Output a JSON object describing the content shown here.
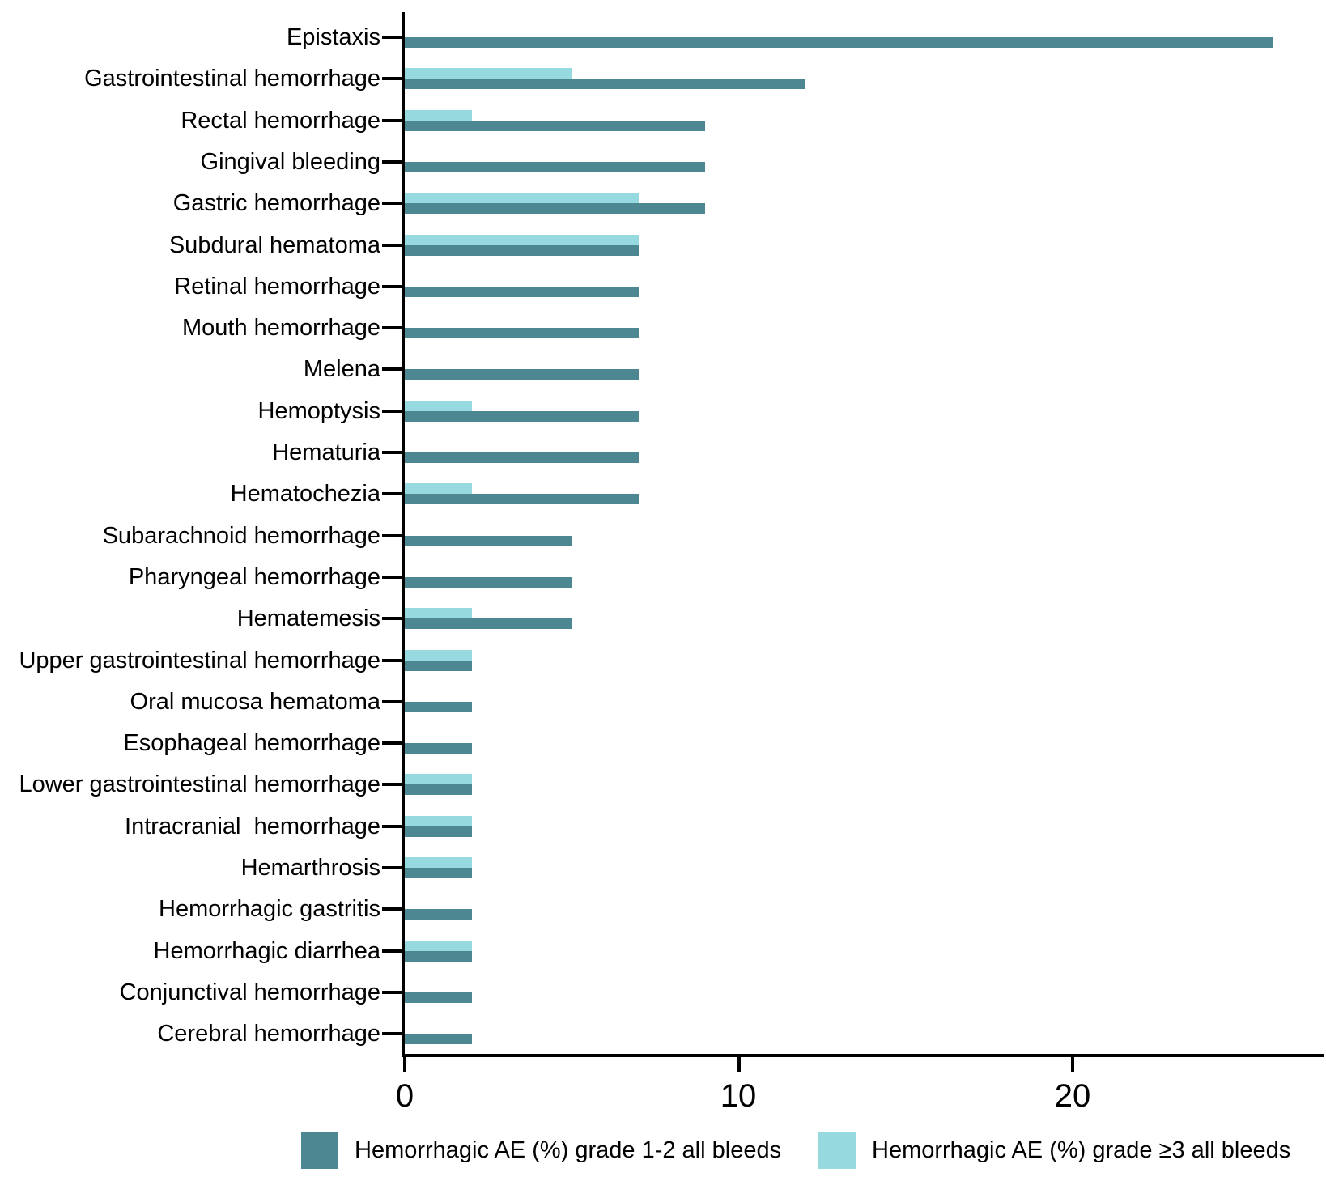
{
  "chart_data": {
    "type": "bar",
    "orientation": "horizontal",
    "title": "",
    "xlabel": "",
    "ylabel": "",
    "grid": false,
    "legend_position": "bottom",
    "xlim": [
      0,
      27.5
    ],
    "x_ticks": [
      "0",
      "10",
      "20"
    ],
    "x_tick_values": [
      0,
      10,
      20
    ],
    "categories": [
      "Epistaxis",
      "Gastrointestinal hemorrhage",
      "Rectal hemorrhage",
      "Gingival bleeding",
      "Gastric hemorrhage",
      "Subdural hematoma",
      "Retinal hemorrhage",
      "Mouth hemorrhage",
      "Melena",
      "Hemoptysis",
      "Hematuria",
      "Hematochezia",
      "Subarachnoid hemorrhage",
      "Pharyngeal hemorrhage",
      "Hematemesis",
      "Upper gastrointestinal hemorrhage",
      "Oral mucosa hematoma",
      "Esophageal hemorrhage",
      "Lower gastrointestinal hemorrhage",
      "Intracranial  hemorrhage",
      "Hemarthrosis",
      "Hemorrhagic gastritis",
      "Hemorrhagic diarrhea",
      "Conjunctival hemorrhage",
      "Cerebral hemorrhage"
    ],
    "series": [
      {
        "name": "Hemorrhagic AE (%) grade 1-2 all bleeds",
        "color": "#4d8791",
        "position": "below-tick",
        "values": [
          26,
          12,
          9,
          9,
          9,
          7,
          7,
          7,
          7,
          7,
          7,
          7,
          5,
          5,
          5,
          2,
          2,
          2,
          2,
          2,
          2,
          2,
          2,
          2,
          2
        ]
      },
      {
        "name": "Hemorrhagic AE (%) grade ≥3 all bleeds",
        "color": "#96d9de",
        "position": "above-tick",
        "values": [
          0,
          5,
          2,
          0,
          7,
          7,
          0,
          0,
          0,
          2,
          0,
          2,
          0,
          0,
          2,
          2,
          0,
          0,
          2,
          2,
          2,
          0,
          2,
          0,
          0
        ]
      }
    ],
    "axis_color": "#000000",
    "text_color": "#000000"
  }
}
